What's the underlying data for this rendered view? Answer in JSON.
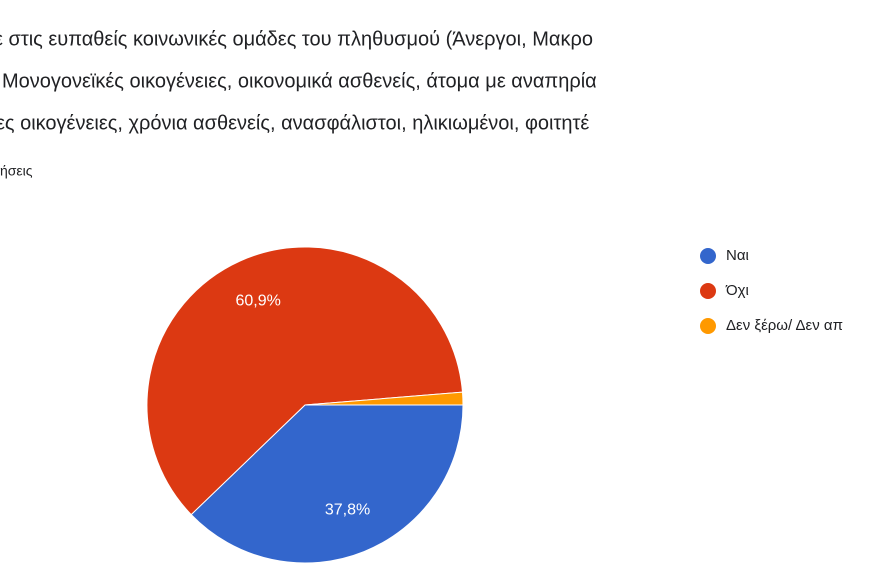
{
  "chart_data": {
    "type": "pie",
    "title_lines": [
      "ε στις ευπαθείς κοινωνικές ομάδες του πληθυσμού (Άνεργοι, Μακρο",
      "Μονογονεϊκές οικογένειες, οικονομικά ασθενείς, άτομα με αναπηρία",
      "ες οικογένειες, χρόνια ασθενείς, ανασφάλιστοι, ηλικιωμένοι, φοιτητέ"
    ],
    "subtitle": "ήσεις",
    "categories": [
      "Ναι",
      "Όχι",
      "Δεν ξέρω/ Δεν απ"
    ],
    "values": [
      37.8,
      60.9,
      1.3
    ],
    "value_labels": [
      "37,8%",
      "60,9%",
      null
    ],
    "colors": [
      "#3366cc",
      "#dc3912",
      "#ff9900"
    ],
    "legend": "right"
  }
}
